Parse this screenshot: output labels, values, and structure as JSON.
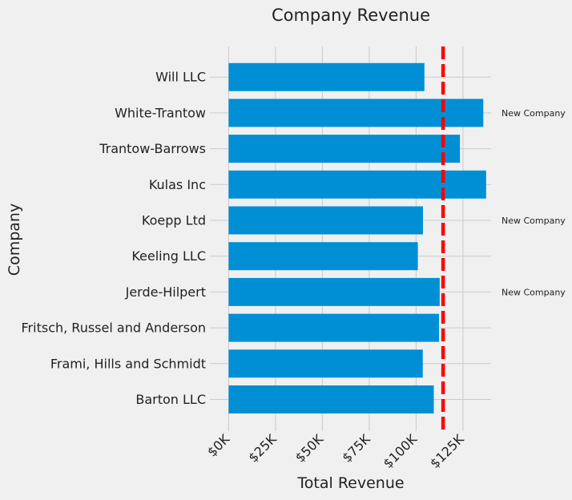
{
  "chart_data": {
    "type": "bar",
    "orientation": "horizontal",
    "title": "Company Revenue",
    "xlabel": "Total Revenue",
    "ylabel": "Company",
    "categories": [
      "Barton LLC",
      "Frami, Hills and Schmidt",
      "Fritsch, Russel and Anderson",
      "Jerde-Hilpert",
      "Keeling LLC",
      "Koepp Ltd",
      "Kulas Inc",
      "Trantow-Barrows",
      "White-Trantow",
      "Will LLC"
    ],
    "values": [
      109438,
      103569,
      112214,
      112591,
      100934,
      103660,
      137352,
      123382,
      135841,
      104437
    ],
    "xlim": [
      -10000,
      140000
    ],
    "xticks": [
      0,
      25000,
      50000,
      75000,
      100000,
      125000
    ],
    "xtick_labels": [
      "$0K",
      "$25K",
      "$50K",
      "$75K",
      "$100K",
      "$125K"
    ],
    "reference_line": {
      "value": 114400,
      "style": "dashed",
      "color": "#ff0000"
    },
    "annotations": [
      {
        "category": "White-Trantow",
        "text": "New Company"
      },
      {
        "category": "Koepp Ltd",
        "text": "New Company"
      },
      {
        "category": "Jerde-Hilpert",
        "text": "New Company"
      }
    ],
    "grid": true,
    "bar_color": "#008fd5",
    "background_color": "#f0f0f0",
    "grid_color": "#cbcbcb",
    "text_color": "#222222"
  }
}
